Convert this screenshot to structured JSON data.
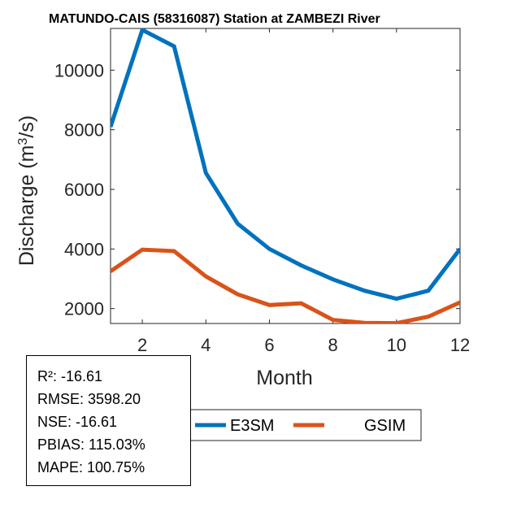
{
  "chart_data": {
    "type": "line",
    "title": "MATUNDO-CAIS (58316087)  Station at  ZAMBEZI  River",
    "xlabel": "Month",
    "ylabel_main": "Discharge (m",
    "ylabel_sup": "3",
    "ylabel_tail": "/s)",
    "xlim": [
      1,
      12
    ],
    "ylim": [
      1500,
      11400
    ],
    "xticks": [
      2,
      4,
      6,
      8,
      10,
      12
    ],
    "yticks": [
      2000,
      4000,
      6000,
      8000,
      10000
    ],
    "x": [
      1,
      2,
      3,
      4,
      5,
      6,
      7,
      8,
      9,
      10,
      11,
      12
    ],
    "series": [
      {
        "name": "E3SM",
        "color": "#0072BD",
        "values": [
          8100,
          11350,
          10800,
          6550,
          4850,
          4000,
          3450,
          2980,
          2600,
          2330,
          2600,
          4000
        ]
      },
      {
        "name": "GSIM",
        "color": "#D95319",
        "values": [
          3250,
          3980,
          3930,
          3080,
          2480,
          2120,
          2180,
          1620,
          1520,
          1510,
          1730,
          2210
        ]
      }
    ],
    "legend": [
      "E3SM",
      "GSIM"
    ],
    "legend_position": "bottom-center",
    "grid": false
  },
  "stats": {
    "r2": "R²: -16.61",
    "rmse": "RMSE: 3598.20",
    "nse": "NSE: -16.61",
    "pbias": "PBIAS: 115.03%",
    "mape": "MAPE: 100.75%"
  }
}
